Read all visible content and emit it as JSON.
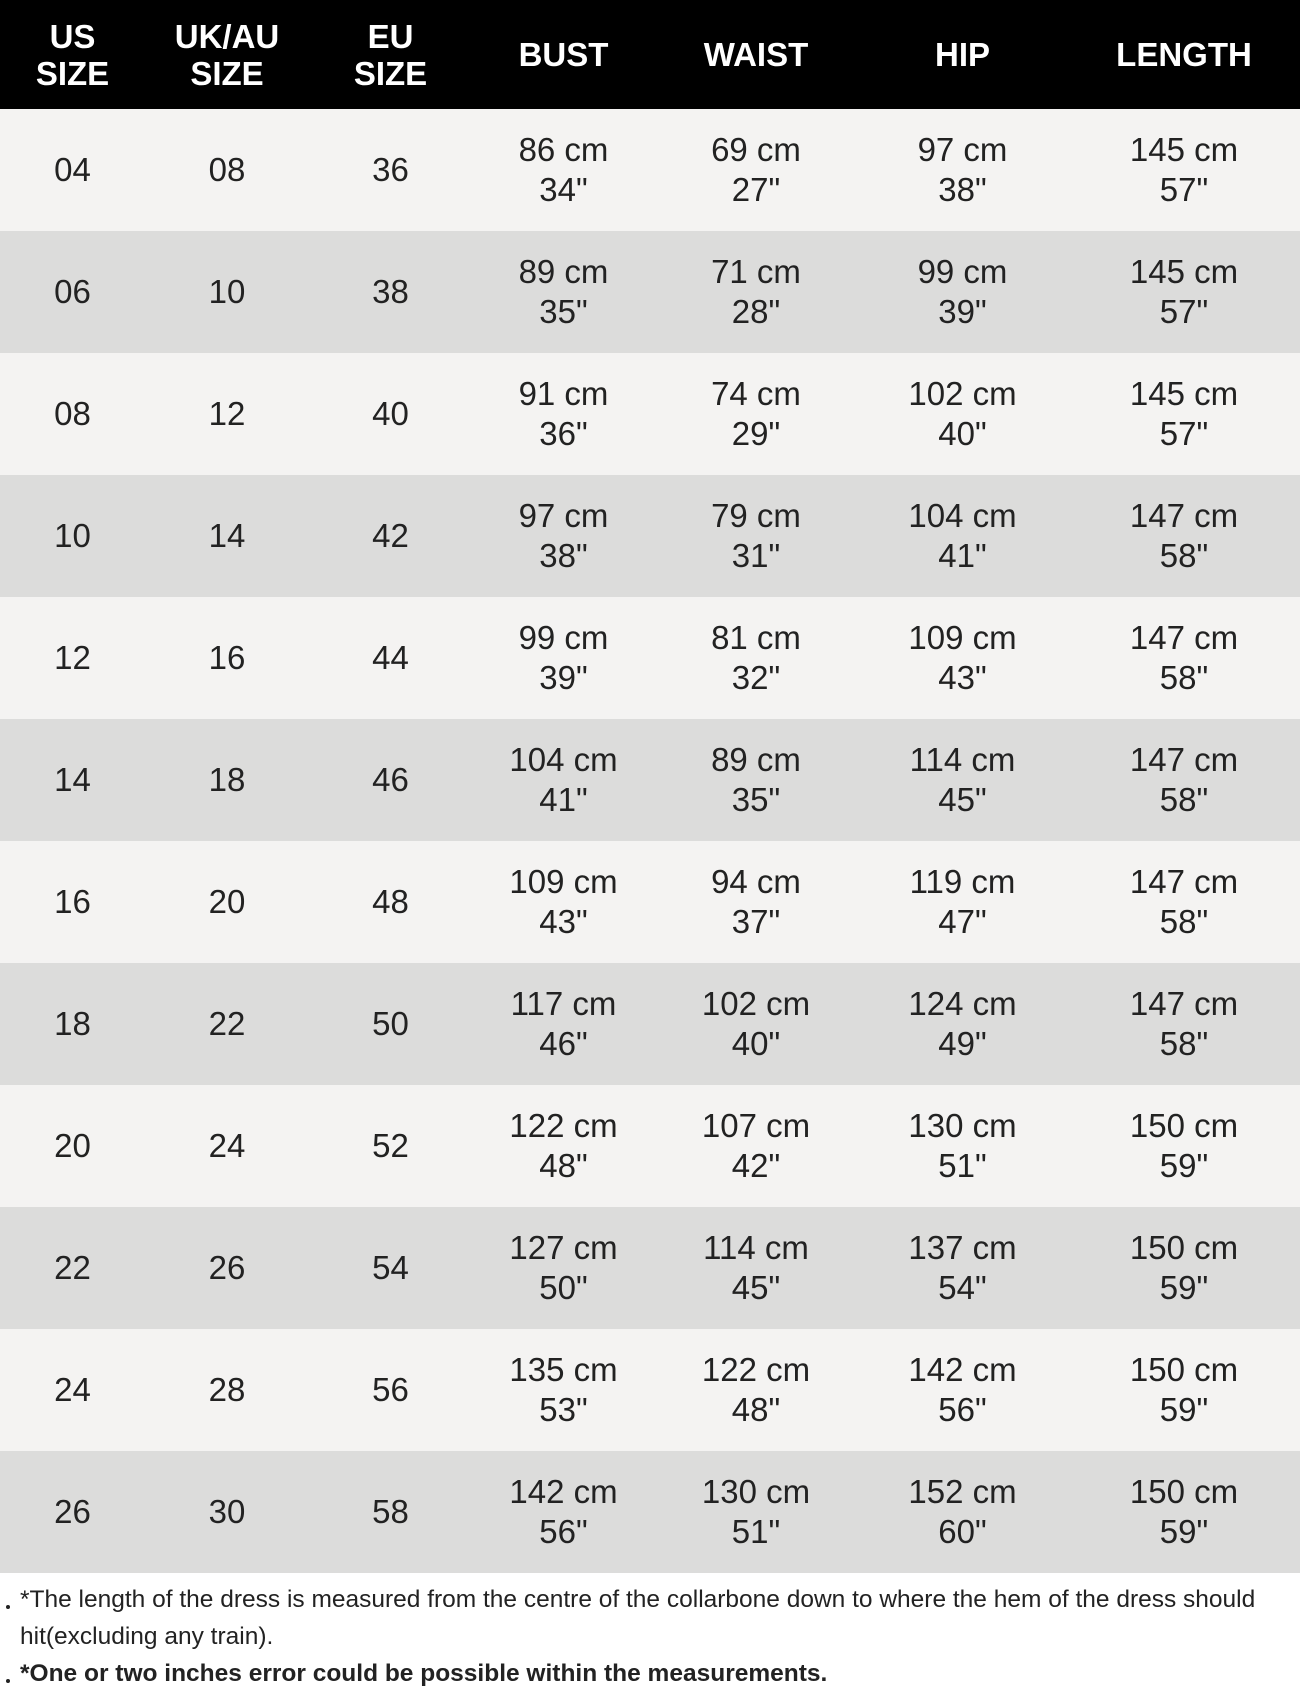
{
  "table": {
    "columns": [
      [
        "US",
        "SIZE"
      ],
      [
        "UK/AU",
        "SIZE"
      ],
      [
        "EU",
        "SIZE"
      ],
      [
        "BUST"
      ],
      [
        "WAIST"
      ],
      [
        "HIP"
      ],
      [
        "LENGTH"
      ]
    ],
    "rows": [
      [
        "04",
        "08",
        "36",
        [
          "86 cm",
          "34\""
        ],
        [
          "69 cm",
          "27\""
        ],
        [
          "97 cm",
          "38\""
        ],
        [
          "145 cm",
          "57\""
        ]
      ],
      [
        "06",
        "10",
        "38",
        [
          "89 cm",
          "35\""
        ],
        [
          "71 cm",
          "28\""
        ],
        [
          "99 cm",
          "39\""
        ],
        [
          "145 cm",
          "57\""
        ]
      ],
      [
        "08",
        "12",
        "40",
        [
          "91 cm",
          "36\""
        ],
        [
          "74 cm",
          "29\""
        ],
        [
          "102 cm",
          "40\""
        ],
        [
          "145 cm",
          "57\""
        ]
      ],
      [
        "10",
        "14",
        "42",
        [
          "97 cm",
          "38\""
        ],
        [
          "79 cm",
          "31\""
        ],
        [
          "104 cm",
          "41\""
        ],
        [
          "147 cm",
          "58\""
        ]
      ],
      [
        "12",
        "16",
        "44",
        [
          "99 cm",
          "39\""
        ],
        [
          "81 cm",
          "32\""
        ],
        [
          "109 cm",
          "43\""
        ],
        [
          "147 cm",
          "58\""
        ]
      ],
      [
        "14",
        "18",
        "46",
        [
          "104 cm",
          "41\""
        ],
        [
          "89 cm",
          "35\""
        ],
        [
          "114 cm",
          "45\""
        ],
        [
          "147 cm",
          "58\""
        ]
      ],
      [
        "16",
        "20",
        "48",
        [
          "109 cm",
          "43\""
        ],
        [
          "94 cm",
          "37\""
        ],
        [
          "119 cm",
          "47\""
        ],
        [
          "147 cm",
          "58\""
        ]
      ],
      [
        "18",
        "22",
        "50",
        [
          "117 cm",
          "46\""
        ],
        [
          "102 cm",
          "40\""
        ],
        [
          "124 cm",
          "49\""
        ],
        [
          "147 cm",
          "58\""
        ]
      ],
      [
        "20",
        "24",
        "52",
        [
          "122 cm",
          "48\""
        ],
        [
          "107 cm",
          "42\""
        ],
        [
          "130 cm",
          "51\""
        ],
        [
          "150 cm",
          "59\""
        ]
      ],
      [
        "22",
        "26",
        "54",
        [
          "127 cm",
          "50\""
        ],
        [
          "114 cm",
          "45\""
        ],
        [
          "137 cm",
          "54\""
        ],
        [
          "150 cm",
          "59\""
        ]
      ],
      [
        "24",
        "28",
        "56",
        [
          "135 cm",
          "53\""
        ],
        [
          "122 cm",
          "48\""
        ],
        [
          "142 cm",
          "56\""
        ],
        [
          "150 cm",
          "59\""
        ]
      ],
      [
        "26",
        "30",
        "58",
        [
          "142 cm",
          "56\""
        ],
        [
          "130 cm",
          "51\""
        ],
        [
          "152 cm",
          "60\""
        ],
        [
          "150 cm",
          "59\""
        ]
      ]
    ]
  },
  "notes": [
    "*The length of the dress is measured from the centre of the collarbone down to where the hem of the dress should hit(excluding any train).",
    "*One or two inches error could be possible within the measurements."
  ]
}
